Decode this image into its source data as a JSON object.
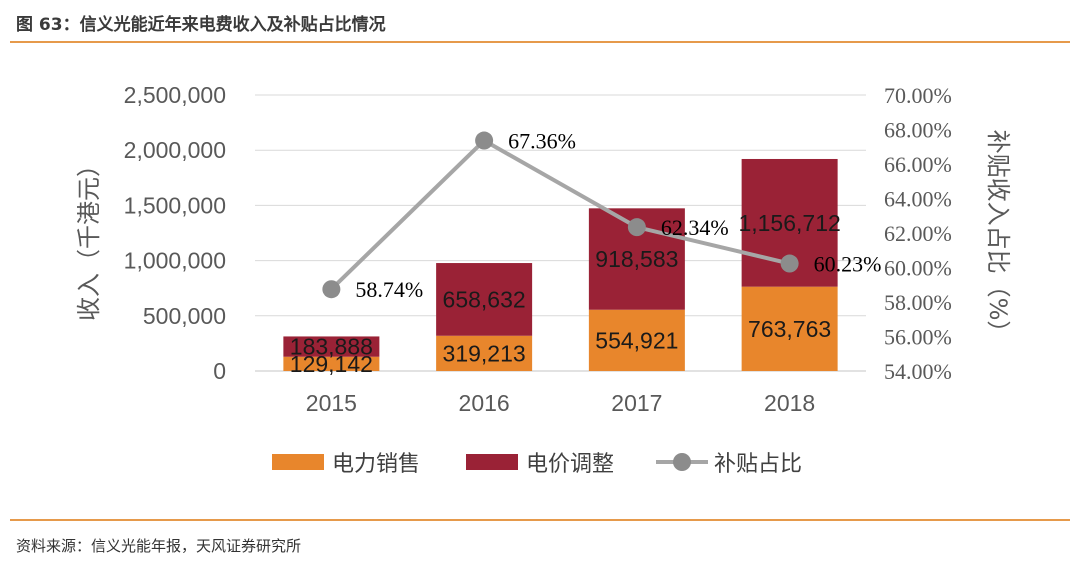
{
  "figure_title": "图 63：信义光能近年来电费收入及补贴占比情况",
  "source": "资料来源：信义光能年报，天风证券研究所",
  "chart_data": {
    "type": "bar",
    "stacked": true,
    "categories": [
      "2015",
      "2016",
      "2017",
      "2018"
    ],
    "series": [
      {
        "name": "电力销售",
        "kind": "bar",
        "axis": "left",
        "color": "#E8862C",
        "values": [
          129142,
          319213,
          554921,
          763763
        ],
        "labels": [
          "129,142",
          "319,213",
          "554,921",
          "763,763"
        ]
      },
      {
        "name": "电价调整",
        "kind": "bar",
        "axis": "left",
        "color": "#9A2236",
        "values": [
          183888,
          658632,
          918583,
          1156712
        ],
        "labels": [
          "183,888",
          "658,632",
          "918,583",
          "1,156,712"
        ]
      },
      {
        "name": "补贴占比",
        "kind": "line",
        "axis": "right",
        "color": "#A6A6A6",
        "values": [
          58.74,
          67.36,
          62.34,
          60.23
        ],
        "labels": [
          "58.74%",
          "67.36%",
          "62.34%",
          "60.23%"
        ]
      }
    ],
    "ylabel": "收入（千港元）",
    "ylabel_right": "补贴收入占比（%）",
    "ylim": [
      0,
      2500000
    ],
    "ylim_right": [
      54,
      70
    ],
    "yticks": [
      "0",
      "500,000",
      "1,000,000",
      "1,500,000",
      "2,000,000",
      "2,500,000"
    ],
    "yticks_right": [
      "54.00%",
      "56.00%",
      "58.00%",
      "60.00%",
      "62.00%",
      "64.00%",
      "66.00%",
      "68.00%",
      "70.00%"
    ],
    "grid": true,
    "legend_position": "bottom"
  }
}
